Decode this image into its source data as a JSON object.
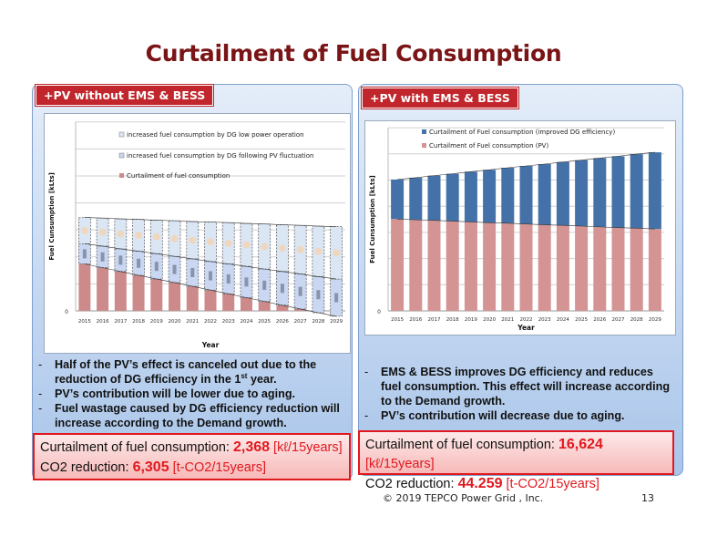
{
  "title": "Curtailment of  Fuel Consumption",
  "left": {
    "tag": "+PV without EMS & BESS",
    "bullets": [
      "Half of the PV’s effect is canceled out due to the reduction of DG efficiency in the 1",
      "PV’s contribution will be lower due to aging.",
      "Fuel wastage caused by DG efficiency reduction will increase according to the Demand growth."
    ],
    "bullet0_sup": "st",
    "bullet0_tail": " year.",
    "result": {
      "fuel_label": "Curtailment of fuel consumption: ",
      "fuel_value": "2,368",
      "fuel_unit": " [kℓ/15years]",
      "co2_label": "CO2 reduction: ",
      "co2_value": "6,305",
      "co2_unit": " [t-CO2/15years]"
    }
  },
  "right": {
    "tag": "+PV with EMS & BESS",
    "bullets": [
      "EMS & BESS improves DG efficiency and reduces fuel consumption. This effect will increase according to the Demand growth.",
      "PV’s contribution will decrease due to aging."
    ],
    "result": {
      "fuel_label": "Curtailment of fuel consumption: ",
      "fuel_value": "16,624",
      "fuel_unit": " [kℓ/15years]",
      "co2_label": "CO2 reduction: ",
      "co2_value": "44.259",
      "co2_unit": " [t-CO2/15years]"
    }
  },
  "footer": {
    "copyright": "© 2019 TEPCO Power Grid , Inc.",
    "page": "13"
  },
  "chart_data": [
    {
      "type": "bar",
      "stacked": true,
      "xlabel": "Year",
      "ylabel": "Fuel Cunsumption [kLts]",
      "ytick_labels": [
        "0"
      ],
      "ylim": [
        -0.3,
        7
      ],
      "grid": true,
      "legend_placement": "top",
      "categories": [
        "2015",
        "2016",
        "2017",
        "2018",
        "2019",
        "2020",
        "2021",
        "2022",
        "2023",
        "2024",
        "2025",
        "2026",
        "2027",
        "2028",
        "2029"
      ],
      "series": [
        {
          "name": "Curtailment of fuel consumption",
          "color": "#cd8a8a",
          "values": [
            1.74,
            1.6,
            1.46,
            1.32,
            1.18,
            1.05,
            0.91,
            0.77,
            0.63,
            0.49,
            0.35,
            0.21,
            0.07,
            -0.07,
            -0.2
          ]
        },
        {
          "name": "increased fuel consumption by DG following PV fluctuation",
          "color": "#c9d7f2",
          "values": [
            0.75,
            0.8,
            0.84,
            0.89,
            0.94,
            0.97,
            1.02,
            1.06,
            1.11,
            1.16,
            1.2,
            1.25,
            1.3,
            1.34,
            1.38
          ]
        },
        {
          "name": "increased fuel consumption by DG low power operation",
          "color": "#dbe6f5",
          "values": [
            0.97,
            1.04,
            1.11,
            1.18,
            1.24,
            1.32,
            1.38,
            1.46,
            1.53,
            1.59,
            1.67,
            1.73,
            1.8,
            1.87,
            1.94
          ]
        }
      ]
    },
    {
      "type": "bar",
      "stacked": true,
      "xlabel": "Year",
      "ylabel": "Fuel Cunsumption [kLts]",
      "ytick_labels": [
        "0"
      ],
      "ylim": [
        0,
        7
      ],
      "grid": true,
      "legend_placement": "top",
      "categories": [
        "2015",
        "2016",
        "2017",
        "2018",
        "2019",
        "2020",
        "2021",
        "2022",
        "2023",
        "2024",
        "2025",
        "2026",
        "2027",
        "2028",
        "2029"
      ],
      "series": [
        {
          "name": "Curtailment of Fuel consumption (PV)",
          "color": "#d49494",
          "values": [
            3.51,
            3.48,
            3.46,
            3.43,
            3.4,
            3.37,
            3.35,
            3.32,
            3.29,
            3.27,
            3.24,
            3.21,
            3.18,
            3.16,
            3.13
          ]
        },
        {
          "name": "Curtailment of Fuel consumption (improved DG efficiency)",
          "color": "#4472a8",
          "values": [
            1.51,
            1.61,
            1.71,
            1.81,
            1.92,
            2.02,
            2.12,
            2.22,
            2.32,
            2.42,
            2.52,
            2.63,
            2.73,
            2.83,
            2.93
          ]
        }
      ]
    }
  ]
}
